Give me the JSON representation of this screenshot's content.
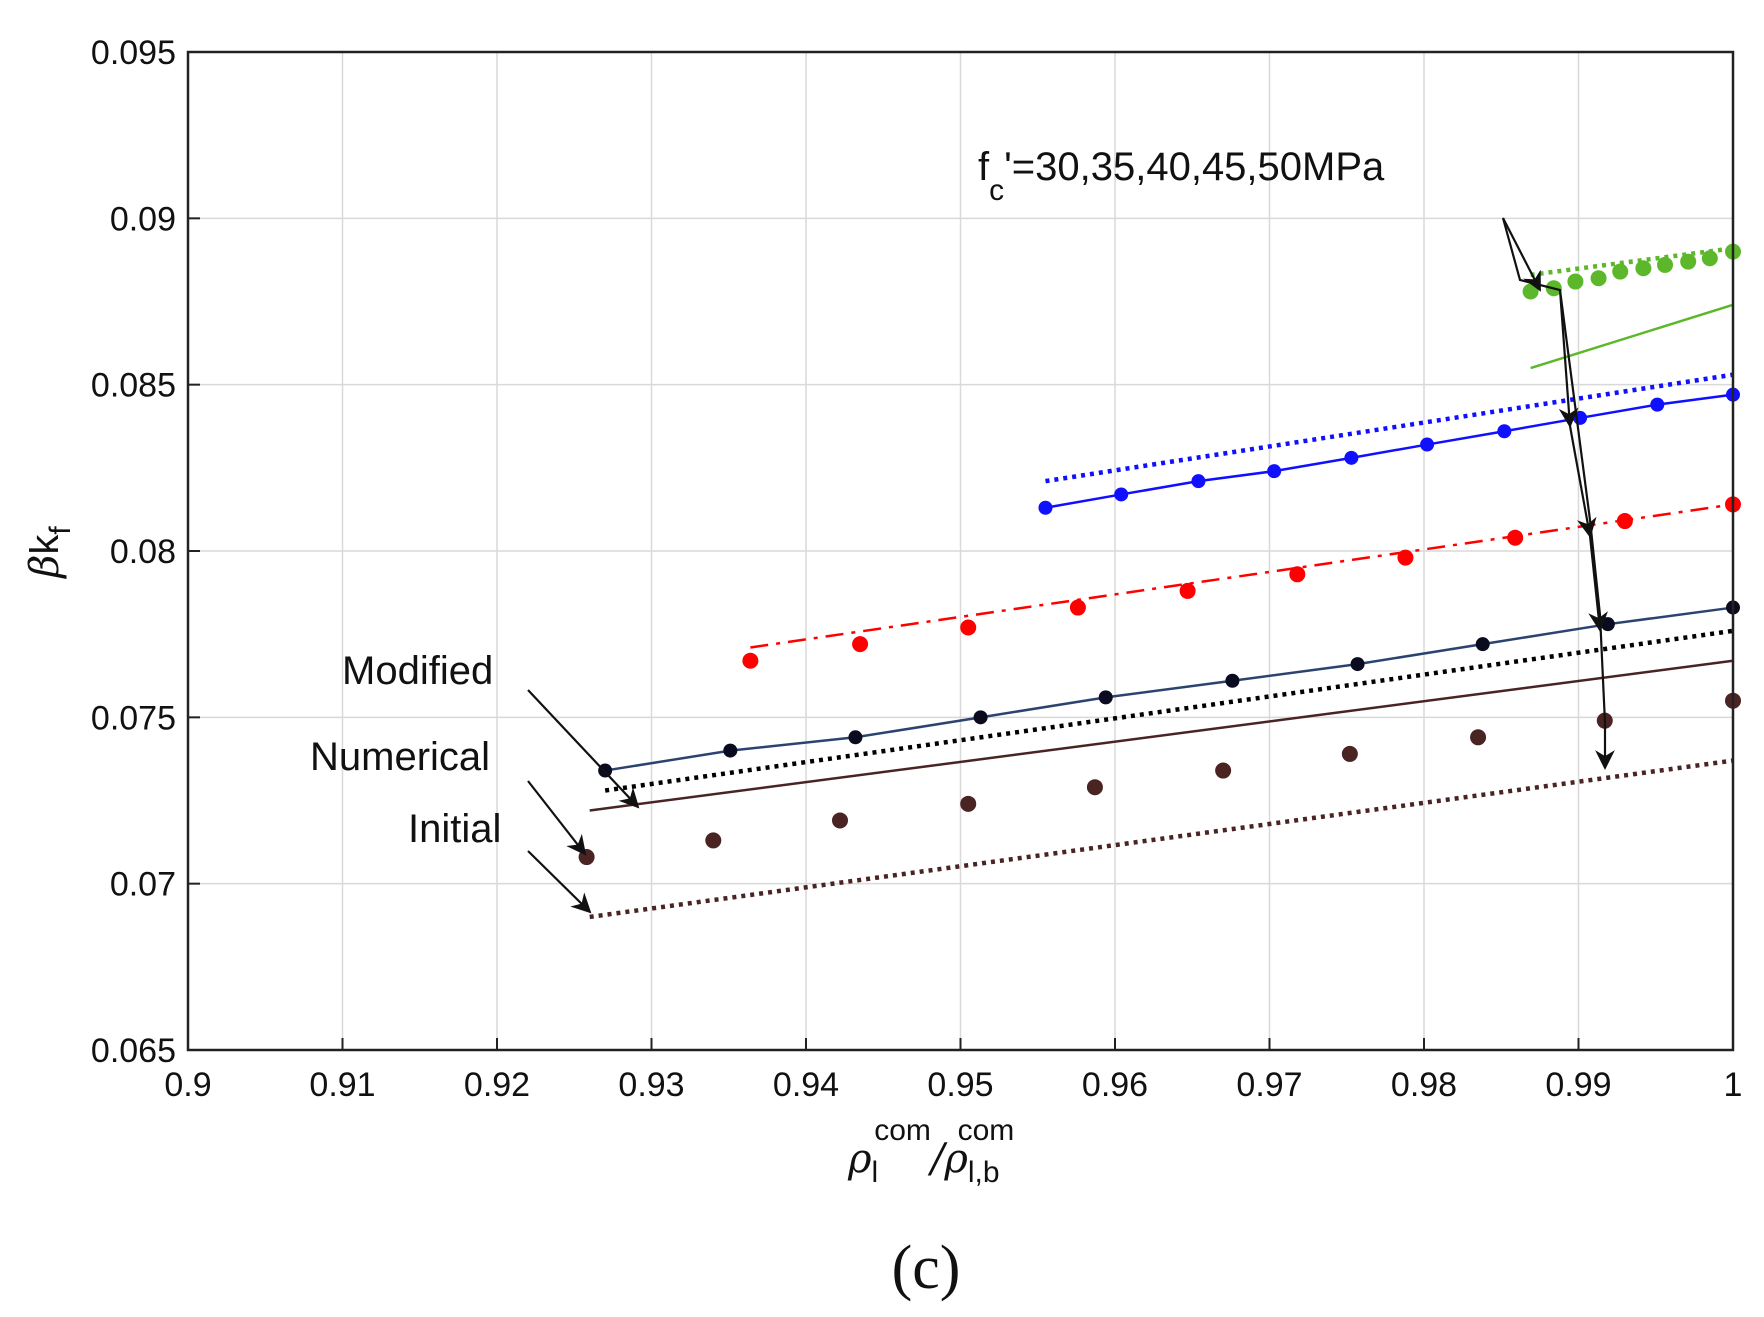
{
  "chart_data": {
    "type": "line",
    "caption": "(c)",
    "xlabel_parts": [
      "ρ",
      "l",
      "com",
      "/",
      "ρ",
      "l,b",
      "com"
    ],
    "ylabel_parts": [
      "β",
      "k",
      "f"
    ],
    "xlim": [
      0.9,
      1.0
    ],
    "ylim": [
      0.065,
      0.095
    ],
    "grid": true,
    "xticks": [
      "0.9",
      "0.91",
      "0.92",
      "0.93",
      "0.94",
      "0.95",
      "0.96",
      "0.97",
      "0.98",
      "0.99",
      "1"
    ],
    "yticks": [
      "0.065",
      "0.07",
      "0.075",
      "0.08",
      "0.085",
      "0.09",
      "0.095"
    ],
    "annotations": {
      "modified": "Modified",
      "numerical": "Numerical",
      "initial": "Initial",
      "fc_main": "f",
      "fc_sub": "c",
      "fc_rest": "'=30,35,40,45,50MPa"
    },
    "series": [
      {
        "name": "30 MPa numerical",
        "style": "points",
        "color": "#4a2323",
        "x": [
          0.9258,
          0.934,
          0.9422,
          0.9505,
          0.9587,
          0.967,
          0.9752,
          0.9835,
          0.9917,
          1.0
        ],
        "y": [
          0.0708,
          0.0713,
          0.0719,
          0.0724,
          0.0729,
          0.0734,
          0.0739,
          0.0744,
          0.0749,
          0.0755
        ]
      },
      {
        "name": "30 MPa modified",
        "style": "solid",
        "color": "#4a2323",
        "x": [
          0.926,
          1.0
        ],
        "y": [
          0.0722,
          0.0767
        ]
      },
      {
        "name": "30 MPa initial",
        "style": "dotted",
        "color": "#4a2323",
        "x": [
          0.926,
          1.0
        ],
        "y": [
          0.069,
          0.0737
        ]
      },
      {
        "name": "35 MPa numerical",
        "style": "points-line",
        "color": "#0b0b20",
        "lineColor": "#2c4370",
        "x": [
          0.927,
          0.9351,
          0.9432,
          0.9513,
          0.9594,
          0.9676,
          0.9757,
          0.9838,
          0.9919,
          1.0
        ],
        "y": [
          0.0734,
          0.074,
          0.0744,
          0.075,
          0.0756,
          0.0761,
          0.0766,
          0.0772,
          0.0778,
          0.0783
        ]
      },
      {
        "name": "35 MPa initial",
        "style": "dotted",
        "color": "#000000",
        "x": [
          0.927,
          1.0
        ],
        "y": [
          0.0728,
          0.0776
        ]
      },
      {
        "name": "40 MPa numerical",
        "style": "points",
        "color": "#ff0000",
        "x": [
          0.9364,
          0.9435,
          0.9505,
          0.9576,
          0.9647,
          0.9718,
          0.9788,
          0.9859,
          0.993,
          1.0
        ],
        "y": [
          0.0767,
          0.0772,
          0.0777,
          0.0783,
          0.0788,
          0.0793,
          0.0798,
          0.0804,
          0.0809,
          0.0814
        ]
      },
      {
        "name": "40 MPa modified",
        "style": "dashdot",
        "color": "#ff0000",
        "x": [
          0.9364,
          1.0
        ],
        "y": [
          0.0771,
          0.0814
        ]
      },
      {
        "name": "45 MPa numerical",
        "style": "points-line",
        "color": "#1010ff",
        "lineColor": "#1010ff",
        "x": [
          0.9555,
          0.9604,
          0.9654,
          0.9703,
          0.9753,
          0.9802,
          0.9852,
          0.9901,
          0.9951,
          1.0
        ],
        "y": [
          0.0813,
          0.0817,
          0.0821,
          0.0824,
          0.0828,
          0.0832,
          0.0836,
          0.084,
          0.0844,
          0.0847
        ]
      },
      {
        "name": "45 MPa initial",
        "style": "dotted",
        "color": "#1010ff",
        "x": [
          0.9555,
          1.0
        ],
        "y": [
          0.0821,
          0.0853
        ]
      },
      {
        "name": "50 MPa numerical",
        "style": "points",
        "color": "#5cb82a",
        "x": [
          0.9869,
          0.9884,
          0.9898,
          0.9913,
          0.9927,
          0.9942,
          0.9956,
          0.9971,
          0.9985,
          1.0
        ],
        "y": [
          0.0878,
          0.0879,
          0.0881,
          0.0882,
          0.0884,
          0.0885,
          0.0886,
          0.0887,
          0.0888,
          0.089
        ]
      },
      {
        "name": "50 MPa modified",
        "style": "solid",
        "color": "#5cb82a",
        "x": [
          0.9869,
          1.0
        ],
        "y": [
          0.0855,
          0.0874
        ]
      },
      {
        "name": "50 MPa initial",
        "style": "dotted",
        "color": "#5cb82a",
        "x": [
          0.9869,
          1.0
        ],
        "y": [
          0.0883,
          0.0891
        ]
      }
    ]
  }
}
